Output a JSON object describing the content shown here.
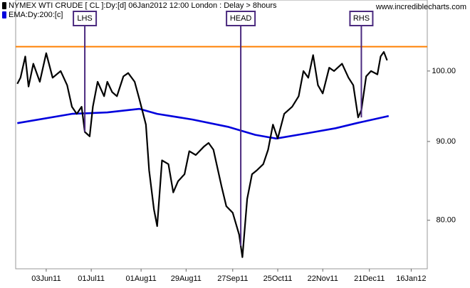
{
  "chart_data": {
    "type": "line",
    "title": "www.incrediblecharts.com",
    "log_scale": true,
    "xlim": [
      "2011-05-15",
      "2012-01-26"
    ],
    "xticks": [
      {
        "value": "2011-06-03",
        "label": "03Jun11"
      },
      {
        "value": "2011-07-01",
        "label": "01Jul11"
      },
      {
        "value": "2011-08-01",
        "label": "01Aug11"
      },
      {
        "value": "2011-08-29",
        "label": "29Aug11"
      },
      {
        "value": "2011-09-27",
        "label": "27Sep11"
      },
      {
        "value": "2011-10-25",
        "label": "25Oct11"
      },
      {
        "value": "2011-11-22",
        "label": "22Nov11"
      },
      {
        "value": "2011-12-21",
        "label": "21Dec11"
      },
      {
        "value": "2012-01-16",
        "label": "16Jan12"
      }
    ],
    "ylim": [
      74.4,
      111.2
    ],
    "yticks": [
      {
        "value": 80,
        "label": "80.00"
      },
      {
        "value": 90,
        "label": "90.00"
      },
      {
        "value": 100,
        "label": "100.00"
      }
    ],
    "series": [
      {
        "name": "NYMEX WTI CRUDE [ CL ]:Dy:[d]  06Jan2012 12:00 London  : Delay > 8hours",
        "color": "#000000",
        "x": [
          "2011-05-16",
          "2011-05-18",
          "2011-05-21",
          "2011-05-23",
          "2011-05-26",
          "2011-05-30",
          "2011-06-03",
          "2011-06-07",
          "2011-06-12",
          "2011-06-16",
          "2011-06-19",
          "2011-06-22",
          "2011-06-25",
          "2011-06-27",
          "2011-06-30",
          "2011-07-02",
          "2011-07-05",
          "2011-07-09",
          "2011-07-11",
          "2011-07-14",
          "2011-07-17",
          "2011-07-21",
          "2011-07-24",
          "2011-07-28",
          "2011-07-31",
          "2011-08-04",
          "2011-08-06",
          "2011-08-09",
          "2011-08-11",
          "2011-08-14",
          "2011-08-18",
          "2011-08-21",
          "2011-08-24",
          "2011-08-28",
          "2011-08-31",
          "2011-09-04",
          "2011-09-09",
          "2011-09-12",
          "2011-09-15",
          "2011-09-20",
          "2011-09-23",
          "2011-09-27",
          "2011-10-01",
          "2011-10-03",
          "2011-10-06",
          "2011-10-09",
          "2011-10-12",
          "2011-10-16",
          "2011-10-19",
          "2011-10-22",
          "2011-10-25",
          "2011-10-29",
          "2011-11-03",
          "2011-11-07",
          "2011-11-10",
          "2011-11-13",
          "2011-11-16",
          "2011-11-19",
          "2011-11-22",
          "2011-11-26",
          "2011-11-29",
          "2011-12-04",
          "2011-12-08",
          "2011-12-11",
          "2011-12-14",
          "2011-12-16",
          "2011-12-19",
          "2011-12-22",
          "2011-12-26",
          "2011-12-28",
          "2011-12-30",
          "2012-01-01"
        ],
        "values": [
          98.1,
          99.0,
          102.2,
          97.7,
          101.1,
          98.4,
          102.7,
          99.0,
          100,
          97.9,
          94.8,
          93.8,
          94.8,
          91.3,
          90.7,
          94.8,
          98.4,
          96.3,
          98.4,
          96.9,
          96.3,
          99.2,
          99.7,
          98.4,
          95.8,
          92.3,
          86.2,
          81.3,
          79.3,
          87.5,
          87.0,
          83.4,
          84.8,
          85.7,
          88.7,
          88.2,
          89.3,
          89.8,
          88.9,
          84.2,
          81.7,
          80.9,
          78.3,
          75.7,
          82.6,
          85.7,
          86.2,
          87.0,
          88.9,
          92.3,
          90.4,
          93.8,
          94.8,
          96.3,
          100,
          99.0,
          102.4,
          97.9,
          96.7,
          100.5,
          100,
          101.1,
          99.0,
          97.9,
          93.3,
          94.3,
          99.2,
          100,
          99.5,
          102.2,
          102.9,
          101.6
        ]
      },
      {
        "name": "EMA:Dy:200:[c]",
        "color": "#0000dd",
        "x": [
          "2011-05-16",
          "2011-06-19",
          "2011-07-11",
          "2011-07-31",
          "2011-08-11",
          "2011-09-02",
          "2011-09-24",
          "2011-10-11",
          "2011-10-24",
          "2011-11-12",
          "2011-11-30",
          "2011-12-13",
          "2012-01-02"
        ],
        "values": [
          92.5,
          93.8,
          94.0,
          94.5,
          93.8,
          93.0,
          92.0,
          90.9,
          90.4,
          91.1,
          91.8,
          92.5,
          93.5
        ]
      }
    ],
    "reference_line": {
      "value": 103.7,
      "color": "#ff8000"
    },
    "annotations": [
      {
        "label": "LHS",
        "x": "2011-06-27",
        "y": 91.3
      },
      {
        "label": "HEAD",
        "x": "2011-10-02",
        "y": 77.0
      },
      {
        "label": "RHS",
        "x": "2011-12-16",
        "y": 93.3
      }
    ]
  }
}
